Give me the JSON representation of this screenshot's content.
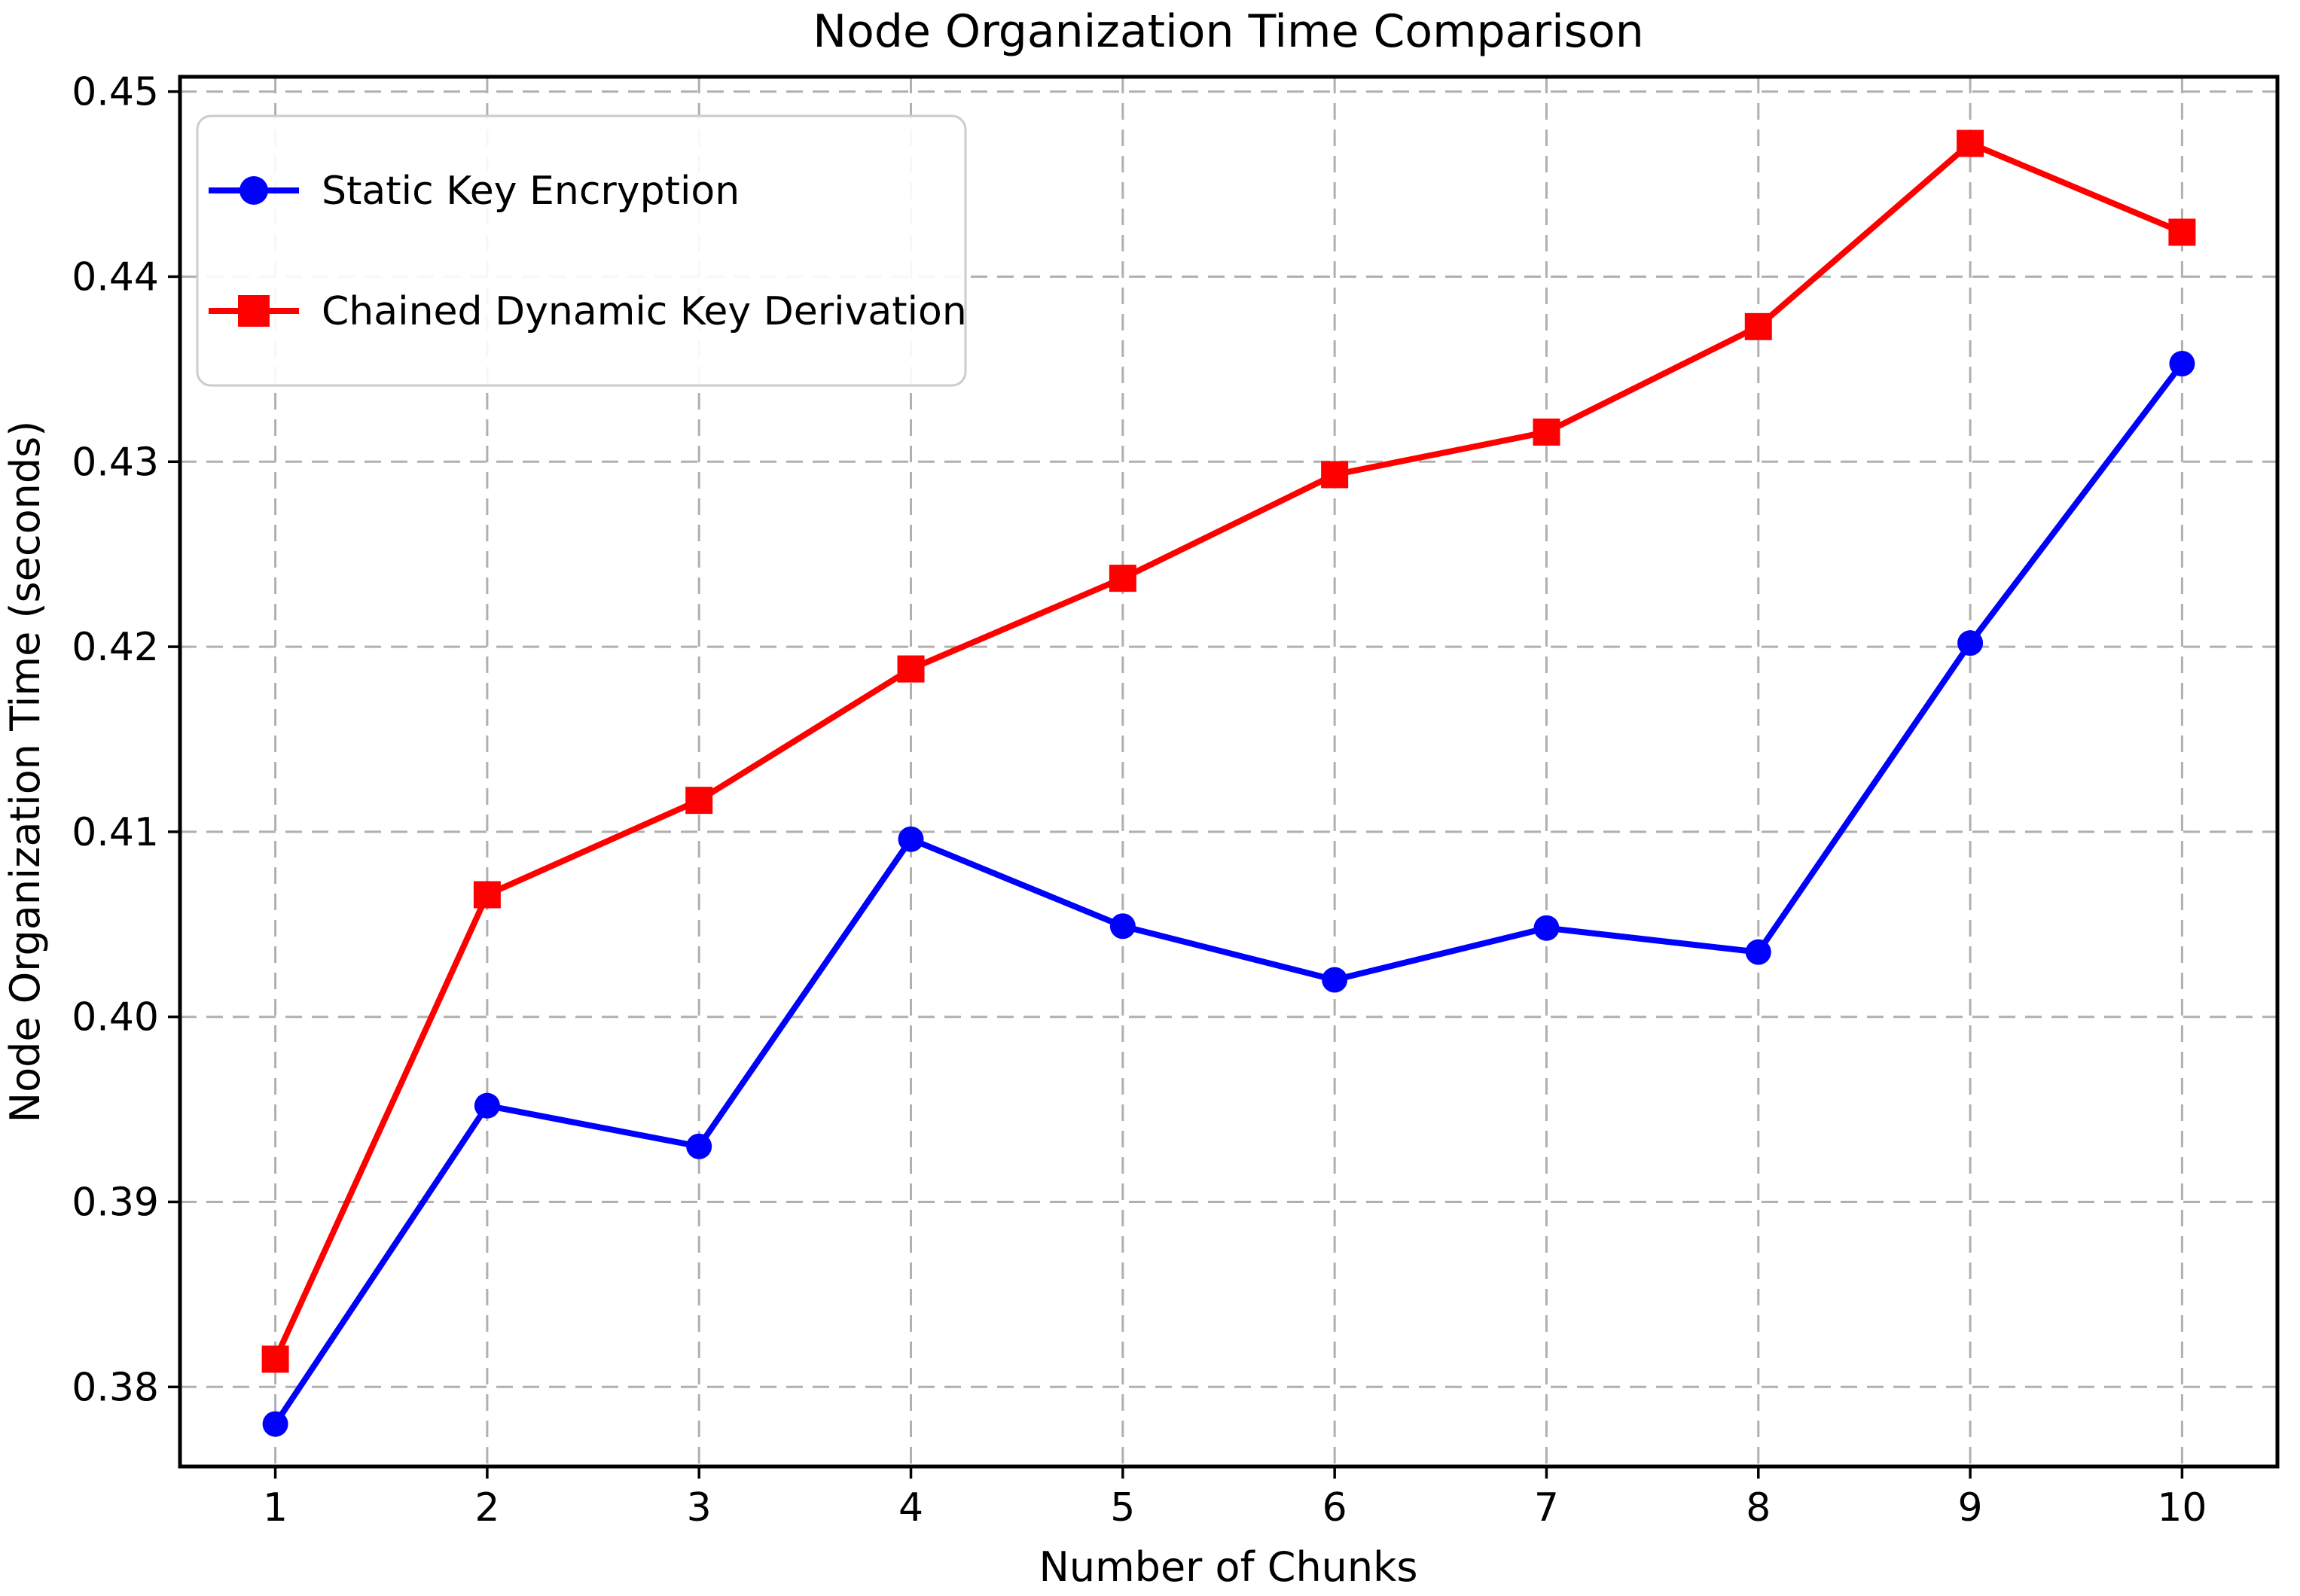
{
  "chart_data": {
    "type": "line",
    "title": "Node Organization Time Comparison",
    "xlabel": "Number of Chunks",
    "ylabel": "Node Organization Time (seconds)",
    "x": [
      1,
      2,
      3,
      4,
      5,
      6,
      7,
      8,
      9,
      10
    ],
    "series": [
      {
        "name": "Static Key Encryption",
        "color": "#0000ff",
        "marker": "circle",
        "values": [
          0.378,
          0.3952,
          0.393,
          0.4096,
          0.4049,
          0.402,
          0.4048,
          0.4035,
          0.4202,
          0.4353
        ]
      },
      {
        "name": "Chained Dynamic Key Derivation",
        "color": "#ff0000",
        "marker": "square",
        "values": [
          0.3815,
          0.4066,
          0.4117,
          0.4188,
          0.4237,
          0.4293,
          0.4316,
          0.4373,
          0.4472,
          0.4424
        ]
      }
    ],
    "xlim": [
      0.55,
      10.45
    ],
    "ylim": [
      0.3757,
      0.4508
    ],
    "xticks": [
      1,
      2,
      3,
      4,
      5,
      6,
      7,
      8,
      9,
      10
    ],
    "yticks": [
      0.38,
      0.39,
      0.4,
      0.41,
      0.42,
      0.43,
      0.44,
      0.45
    ],
    "ytick_decimals": 2,
    "grid": true,
    "grid_style": "dashed",
    "legend_position": "upper left",
    "colors": {
      "grid": "#b0b0b0",
      "axes": "#000000",
      "text": "#000000",
      "background": "#ffffff",
      "legend_border": "#cccccc"
    }
  }
}
